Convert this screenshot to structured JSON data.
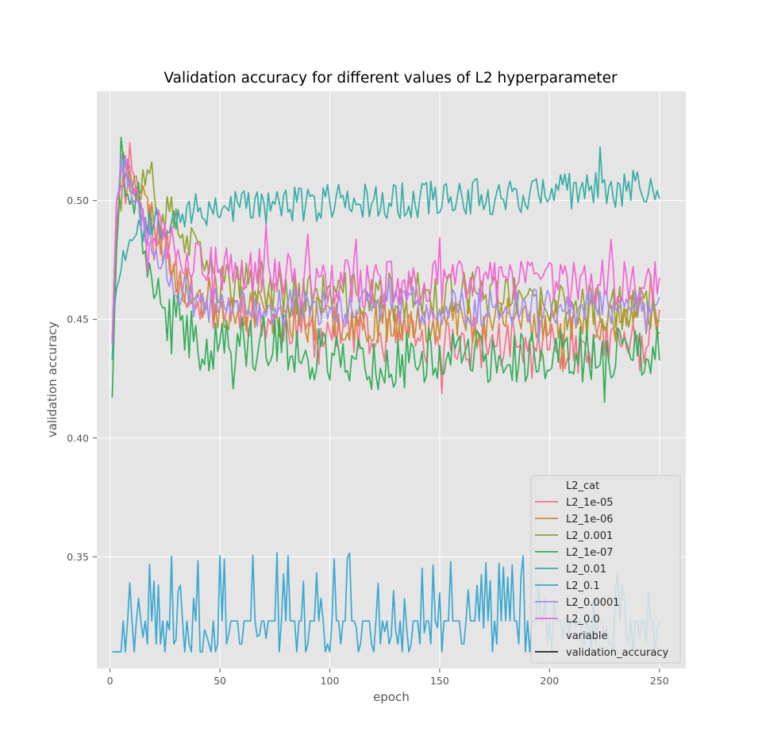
{
  "chart_data": {
    "type": "line",
    "title": "Validation accuracy for different values of L2 hyperparameter",
    "xlabel": "epoch",
    "ylabel": "validation accuracy",
    "xlim": [
      -6,
      262
    ],
    "ylim": [
      0.303,
      0.546
    ],
    "xticks": [
      0,
      50,
      100,
      150,
      200,
      250
    ],
    "yticks": [
      0.35,
      0.4,
      0.45,
      0.5
    ],
    "ytick_labels": [
      "0.35",
      "0.40",
      "0.45",
      "0.50"
    ],
    "grid": true,
    "legend": {
      "placement": "bottom-right",
      "hue_title": "L2_cat",
      "style_title": "variable",
      "style_entry": "validation_accuracy"
    },
    "series": [
      {
        "name": "L2_1e-05",
        "color": "#f77189",
        "points": [
          [
            1,
            0.44
          ],
          [
            3,
            0.49
          ],
          [
            5,
            0.515
          ],
          [
            7,
            0.505
          ],
          [
            9,
            0.52
          ],
          [
            12,
            0.505
          ],
          [
            15,
            0.495
          ],
          [
            20,
            0.485
          ],
          [
            25,
            0.48
          ],
          [
            30,
            0.47
          ],
          [
            40,
            0.46
          ],
          [
            50,
            0.455
          ],
          [
            60,
            0.455
          ],
          [
            70,
            0.45
          ],
          [
            80,
            0.45
          ],
          [
            90,
            0.445
          ],
          [
            100,
            0.445
          ],
          [
            110,
            0.445
          ],
          [
            120,
            0.44
          ],
          [
            130,
            0.445
          ],
          [
            140,
            0.44
          ],
          [
            150,
            0.44
          ],
          [
            160,
            0.44
          ],
          [
            170,
            0.44
          ],
          [
            180,
            0.44
          ],
          [
            190,
            0.435
          ],
          [
            200,
            0.44
          ],
          [
            210,
            0.44
          ],
          [
            220,
            0.44
          ],
          [
            230,
            0.44
          ],
          [
            240,
            0.44
          ],
          [
            250,
            0.445
          ]
        ],
        "amp": 0.011,
        "seed": 11
      },
      {
        "name": "L2_1e-06",
        "color": "#cb8e32",
        "points": [
          [
            1,
            0.44
          ],
          [
            3,
            0.5
          ],
          [
            5,
            0.515
          ],
          [
            7,
            0.52
          ],
          [
            9,
            0.515
          ],
          [
            12,
            0.505
          ],
          [
            15,
            0.5
          ],
          [
            20,
            0.49
          ],
          [
            25,
            0.48
          ],
          [
            30,
            0.47
          ],
          [
            40,
            0.46
          ],
          [
            50,
            0.455
          ],
          [
            60,
            0.455
          ],
          [
            70,
            0.455
          ],
          [
            80,
            0.45
          ],
          [
            90,
            0.45
          ],
          [
            100,
            0.45
          ],
          [
            110,
            0.45
          ],
          [
            120,
            0.45
          ],
          [
            130,
            0.45
          ],
          [
            140,
            0.45
          ],
          [
            150,
            0.45
          ],
          [
            160,
            0.45
          ],
          [
            170,
            0.45
          ],
          [
            180,
            0.45
          ],
          [
            190,
            0.45
          ],
          [
            200,
            0.45
          ],
          [
            210,
            0.45
          ],
          [
            220,
            0.45
          ],
          [
            230,
            0.45
          ],
          [
            240,
            0.45
          ],
          [
            250,
            0.45
          ]
        ],
        "amp": 0.01,
        "seed": 23
      },
      {
        "name": "L2_0.001",
        "color": "#94a232",
        "points": [
          [
            1,
            0.44
          ],
          [
            3,
            0.5
          ],
          [
            5,
            0.515
          ],
          [
            7,
            0.515
          ],
          [
            9,
            0.51
          ],
          [
            12,
            0.505
          ],
          [
            15,
            0.505
          ],
          [
            20,
            0.5
          ],
          [
            25,
            0.495
          ],
          [
            30,
            0.49
          ],
          [
            40,
            0.475
          ],
          [
            50,
            0.465
          ],
          [
            60,
            0.465
          ],
          [
            70,
            0.465
          ],
          [
            80,
            0.46
          ],
          [
            90,
            0.46
          ],
          [
            100,
            0.46
          ],
          [
            110,
            0.46
          ],
          [
            120,
            0.46
          ],
          [
            130,
            0.46
          ],
          [
            140,
            0.46
          ],
          [
            150,
            0.46
          ],
          [
            160,
            0.46
          ],
          [
            170,
            0.46
          ],
          [
            180,
            0.46
          ],
          [
            190,
            0.455
          ],
          [
            200,
            0.455
          ],
          [
            210,
            0.455
          ],
          [
            220,
            0.455
          ],
          [
            230,
            0.455
          ],
          [
            240,
            0.455
          ],
          [
            250,
            0.455
          ]
        ],
        "amp": 0.01,
        "seed": 37
      },
      {
        "name": "L2_1e-07",
        "color": "#34ad59",
        "points": [
          [
            1,
            0.417
          ],
          [
            2,
            0.45
          ],
          [
            3,
            0.48
          ],
          [
            5,
            0.52
          ],
          [
            7,
            0.51
          ],
          [
            9,
            0.5
          ],
          [
            12,
            0.495
          ],
          [
            15,
            0.485
          ],
          [
            18,
            0.475
          ],
          [
            20,
            0.465
          ],
          [
            23,
            0.455
          ],
          [
            26,
            0.45
          ],
          [
            30,
            0.45
          ],
          [
            35,
            0.445
          ],
          [
            40,
            0.44
          ],
          [
            50,
            0.44
          ],
          [
            60,
            0.44
          ],
          [
            70,
            0.44
          ],
          [
            80,
            0.44
          ],
          [
            90,
            0.435
          ],
          [
            100,
            0.435
          ],
          [
            110,
            0.435
          ],
          [
            120,
            0.43
          ],
          [
            130,
            0.43
          ],
          [
            140,
            0.435
          ],
          [
            150,
            0.435
          ],
          [
            160,
            0.435
          ],
          [
            170,
            0.435
          ],
          [
            180,
            0.435
          ],
          [
            190,
            0.435
          ],
          [
            200,
            0.435
          ],
          [
            210,
            0.435
          ],
          [
            220,
            0.435
          ],
          [
            230,
            0.435
          ],
          [
            240,
            0.435
          ],
          [
            250,
            0.435
          ]
        ],
        "amp": 0.012,
        "seed": 41
      },
      {
        "name": "L2_0.01",
        "color": "#36ada4",
        "points": [
          [
            1,
            0.433
          ],
          [
            2,
            0.455
          ],
          [
            3,
            0.463
          ],
          [
            5,
            0.475
          ],
          [
            8,
            0.48
          ],
          [
            10,
            0.485
          ],
          [
            12,
            0.49
          ],
          [
            15,
            0.49
          ],
          [
            20,
            0.49
          ],
          [
            25,
            0.492
          ],
          [
            30,
            0.495
          ],
          [
            40,
            0.495
          ],
          [
            50,
            0.498
          ],
          [
            60,
            0.498
          ],
          [
            70,
            0.498
          ],
          [
            80,
            0.498
          ],
          [
            90,
            0.498
          ],
          [
            100,
            0.5
          ],
          [
            110,
            0.5
          ],
          [
            120,
            0.5
          ],
          [
            130,
            0.5
          ],
          [
            140,
            0.5
          ],
          [
            150,
            0.502
          ],
          [
            160,
            0.502
          ],
          [
            170,
            0.502
          ],
          [
            180,
            0.502
          ],
          [
            190,
            0.503
          ],
          [
            200,
            0.503
          ],
          [
            210,
            0.504
          ],
          [
            220,
            0.505
          ],
          [
            230,
            0.505
          ],
          [
            240,
            0.505
          ],
          [
            250,
            0.506
          ]
        ],
        "amp": 0.008,
        "seed": 53
      },
      {
        "name": "L2_0.1",
        "color": "#39a7d0",
        "points": [
          [
            1,
            0.31
          ],
          [
            5,
            0.31
          ],
          [
            6,
            0.323
          ],
          [
            7,
            0.31
          ],
          [
            8,
            0.323
          ],
          [
            12,
            0.323
          ],
          [
            15,
            0.323
          ],
          [
            20,
            0.323
          ],
          [
            25,
            0.323
          ],
          [
            30,
            0.323
          ],
          [
            40,
            0.323
          ],
          [
            50,
            0.323
          ],
          [
            60,
            0.323
          ],
          [
            70,
            0.323
          ],
          [
            80,
            0.323
          ],
          [
            90,
            0.323
          ],
          [
            100,
            0.323
          ],
          [
            110,
            0.323
          ],
          [
            120,
            0.323
          ],
          [
            130,
            0.323
          ],
          [
            140,
            0.323
          ],
          [
            150,
            0.323
          ],
          [
            160,
            0.323
          ],
          [
            170,
            0.323
          ],
          [
            180,
            0.323
          ],
          [
            190,
            0.323
          ],
          [
            200,
            0.323
          ],
          [
            210,
            0.323
          ],
          [
            220,
            0.323
          ],
          [
            230,
            0.323
          ],
          [
            240,
            0.323
          ],
          [
            250,
            0.323
          ]
        ],
        "amp": 0.0,
        "seed": 67,
        "quantized": true
      },
      {
        "name": "L2_0.0001",
        "color": "#a48cf4",
        "points": [
          [
            1,
            0.44
          ],
          [
            3,
            0.5
          ],
          [
            5,
            0.515
          ],
          [
            7,
            0.515
          ],
          [
            9,
            0.505
          ],
          [
            12,
            0.5
          ],
          [
            15,
            0.49
          ],
          [
            20,
            0.48
          ],
          [
            25,
            0.475
          ],
          [
            30,
            0.465
          ],
          [
            40,
            0.455
          ],
          [
            50,
            0.455
          ],
          [
            60,
            0.455
          ],
          [
            70,
            0.455
          ],
          [
            80,
            0.455
          ],
          [
            90,
            0.455
          ],
          [
            100,
            0.455
          ],
          [
            110,
            0.455
          ],
          [
            120,
            0.455
          ],
          [
            130,
            0.455
          ],
          [
            140,
            0.455
          ],
          [
            150,
            0.455
          ],
          [
            160,
            0.455
          ],
          [
            170,
            0.455
          ],
          [
            180,
            0.455
          ],
          [
            190,
            0.455
          ],
          [
            200,
            0.455
          ],
          [
            210,
            0.455
          ],
          [
            220,
            0.455
          ],
          [
            230,
            0.455
          ],
          [
            240,
            0.455
          ],
          [
            250,
            0.46
          ]
        ],
        "amp": 0.008,
        "seed": 79
      },
      {
        "name": "L2_0.0",
        "color": "#f564d4",
        "points": [
          [
            1,
            0.44
          ],
          [
            3,
            0.5
          ],
          [
            5,
            0.51
          ],
          [
            7,
            0.515
          ],
          [
            9,
            0.51
          ],
          [
            12,
            0.505
          ],
          [
            15,
            0.495
          ],
          [
            20,
            0.49
          ],
          [
            25,
            0.485
          ],
          [
            30,
            0.48
          ],
          [
            40,
            0.475
          ],
          [
            50,
            0.47
          ],
          [
            60,
            0.47
          ],
          [
            70,
            0.47
          ],
          [
            80,
            0.47
          ],
          [
            90,
            0.465
          ],
          [
            100,
            0.465
          ],
          [
            110,
            0.465
          ],
          [
            120,
            0.465
          ],
          [
            130,
            0.465
          ],
          [
            140,
            0.465
          ],
          [
            150,
            0.465
          ],
          [
            160,
            0.465
          ],
          [
            170,
            0.465
          ],
          [
            180,
            0.465
          ],
          [
            190,
            0.465
          ],
          [
            200,
            0.465
          ],
          [
            210,
            0.465
          ],
          [
            220,
            0.465
          ],
          [
            230,
            0.465
          ],
          [
            240,
            0.465
          ],
          [
            250,
            0.465
          ]
        ],
        "amp": 0.01,
        "seed": 97
      }
    ]
  }
}
